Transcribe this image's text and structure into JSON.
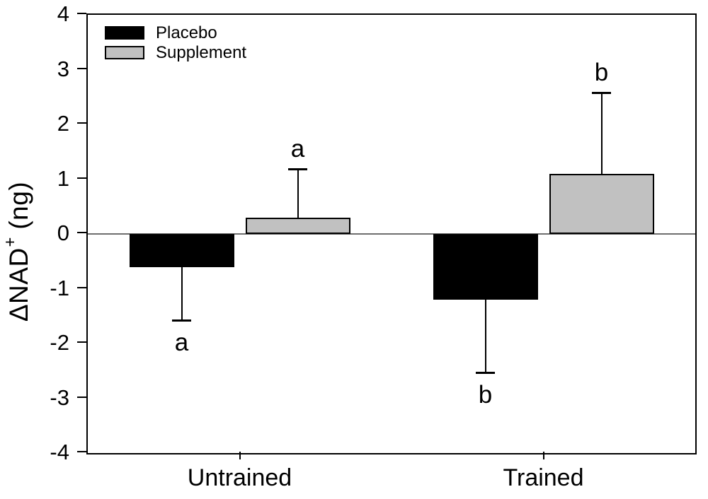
{
  "chart_data": {
    "type": "bar",
    "title": "",
    "categories": [
      "Untrained",
      "Trained"
    ],
    "series": [
      {
        "name": "Placebo",
        "color": "#000000",
        "values": [
          -0.6,
          -1.2
        ],
        "errors": [
          1.0,
          1.35
        ],
        "sig_letters": [
          "a",
          "b"
        ]
      },
      {
        "name": "Supplement",
        "color": "#c1c1c1",
        "values": [
          0.3,
          1.1
        ],
        "errors": [
          0.9,
          1.5
        ],
        "sig_letters": [
          "a",
          "b"
        ]
      }
    ],
    "xlabel": "",
    "ylabel": "ΔNAD⁺ (ng)",
    "ylabel_parts": {
      "base": "ΔNAD",
      "sup": "+",
      "unit": "(ng)"
    },
    "ylim": [
      -4,
      4
    ],
    "yticks": [
      4,
      3,
      2,
      1,
      0,
      -1,
      -2,
      -3,
      -4
    ],
    "ytick_labels": [
      "4",
      "3",
      "2",
      "1",
      "0",
      "-1",
      "-2",
      "-3",
      "-4"
    ],
    "grid": false,
    "legend_position": "top-left",
    "error_bar_direction": "away-from-zero",
    "zero_line_color": "#6e6e6e",
    "bar_edge_color": "#000000",
    "background_color": "#ffffff"
  }
}
